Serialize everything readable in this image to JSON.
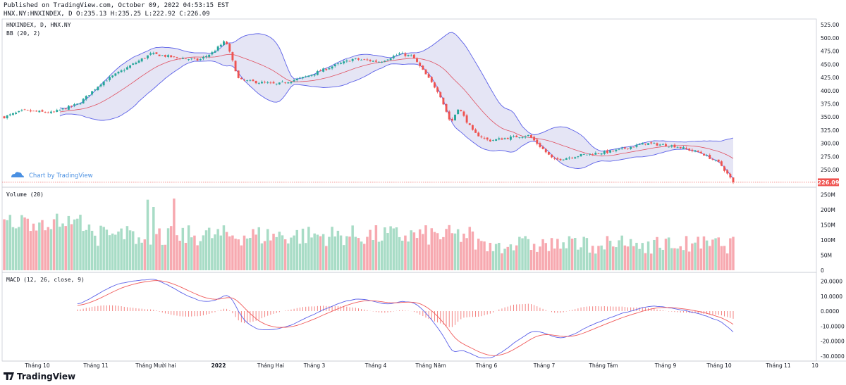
{
  "header": {
    "published": "Published on TradingView.com, October 09, 2022 04:53:15 EST",
    "ohlc": "HNX.NY:HNXINDEX, D O:235.13 H:235.25 L:222.92 C:226.09"
  },
  "main_pane": {
    "symbol_label": "HNXINDEX, D, HNX.NY",
    "indicator_label": "BB (20, 2)",
    "watermark": "Chart by TradingView",
    "last_price_label": "226.09",
    "last_price": 226.09
  },
  "volume_pane": {
    "label": "Volume (20)"
  },
  "macd_pane": {
    "label": "MACD (12, 26, close, 9)"
  },
  "footer": {
    "brand": "TradingView"
  },
  "colors": {
    "up": "#26a69a",
    "down": "#ef5350",
    "vol_up": "#a8dcc6",
    "vol_down": "#f7a9b0",
    "bb_band": "#5b60e8",
    "bb_fill": "#dcdcf2",
    "bb_basis": "#e05060",
    "macd_line": "#5b60e8",
    "signal_line": "#f05a5a",
    "hist": "#ef5350"
  },
  "chart_data": [
    {
      "type": "candlestick",
      "title": "HNXINDEX, D, HNX.NY",
      "x_ticks": [
        "Tháng 10",
        "Tháng 11",
        "Tháng Mười hai",
        "2022",
        "Tháng Hai",
        "Tháng 3",
        "Tháng 4",
        "Tháng Năm",
        "Tháng 6",
        "Tháng 7",
        "Tháng Tám",
        "Tháng 9",
        "Tháng 10",
        "Tháng 11",
        "10"
      ],
      "y_ticks": [
        525,
        500,
        475,
        450,
        425,
        400,
        375,
        350,
        325,
        300,
        275,
        250
      ],
      "ylim": [
        222,
        532
      ],
      "close_path_approx": {
        "dates": [
          "2021-09-20",
          "2021-09-30",
          "2021-10-15",
          "2021-10-29",
          "2021-11-10",
          "2021-11-24",
          "2021-12-06",
          "2021-12-20",
          "2021-12-31",
          "2022-01-07",
          "2022-01-14",
          "2022-01-21",
          "2022-02-10",
          "2022-02-24",
          "2022-03-10",
          "2022-03-22",
          "2022-04-05",
          "2022-04-15",
          "2022-04-22",
          "2022-05-06",
          "2022-05-12",
          "2022-05-16",
          "2022-05-24",
          "2022-06-01",
          "2022-06-14",
          "2022-06-22",
          "2022-07-05",
          "2022-07-20",
          "2022-08-05",
          "2022-08-22",
          "2022-09-06",
          "2022-09-20",
          "2022-09-30",
          "2022-10-07"
        ],
        "close": [
          350,
          362,
          358,
          375,
          415,
          445,
          470,
          462,
          458,
          472,
          495,
          420,
          412,
          425,
          445,
          460,
          455,
          470,
          465,
          395,
          338,
          368,
          320,
          305,
          312,
          315,
          268,
          278,
          285,
          300,
          295,
          282,
          262,
          226.09
        ]
      },
      "indicator": "BB (20, 2)"
    },
    {
      "type": "bar",
      "title": "Volume (20)",
      "y_ticks": [
        "250M",
        "200M",
        "150M",
        "100M",
        "50M",
        "0"
      ]
    },
    {
      "type": "line",
      "title": "MACD (12, 26, close, 9)",
      "y_ticks": [
        20.0,
        10.0,
        0.0,
        -10.0,
        -20.0,
        -30.0
      ]
    }
  ]
}
